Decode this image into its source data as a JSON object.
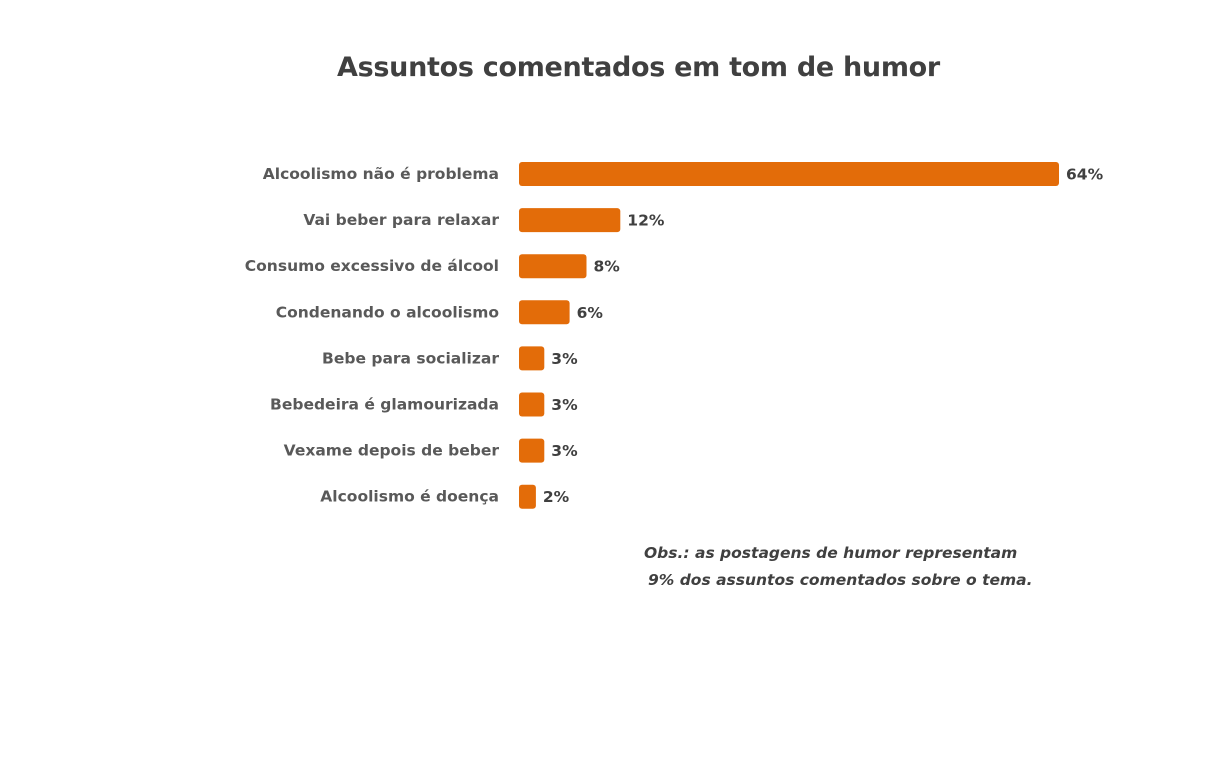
{
  "chart_data": {
    "type": "bar",
    "orientation": "horizontal",
    "title": "Assuntos comentados em tom de humor",
    "categories": [
      "Alcoolismo não é problema",
      "Vai beber para relaxar",
      "Consumo excessivo de álcool",
      "Condenando o alcoolismo",
      "Bebe para socializar",
      "Bebedeira é glamourizada",
      "Vexame depois de beber",
      "Alcoolismo é doença"
    ],
    "values": [
      64,
      12,
      8,
      6,
      3,
      3,
      3,
      2
    ],
    "value_labels": [
      "64%",
      "12%",
      "8%",
      "6%",
      "3%",
      "3%",
      "3%",
      "2%"
    ],
    "unit": "%",
    "xlabel": "",
    "ylabel": "",
    "grid": false,
    "bar_color": "#E36C09"
  },
  "note": {
    "line1": "Obs.: as postagens de humor representam",
    "line2": "9% dos assuntos comentados sobre o tema."
  }
}
